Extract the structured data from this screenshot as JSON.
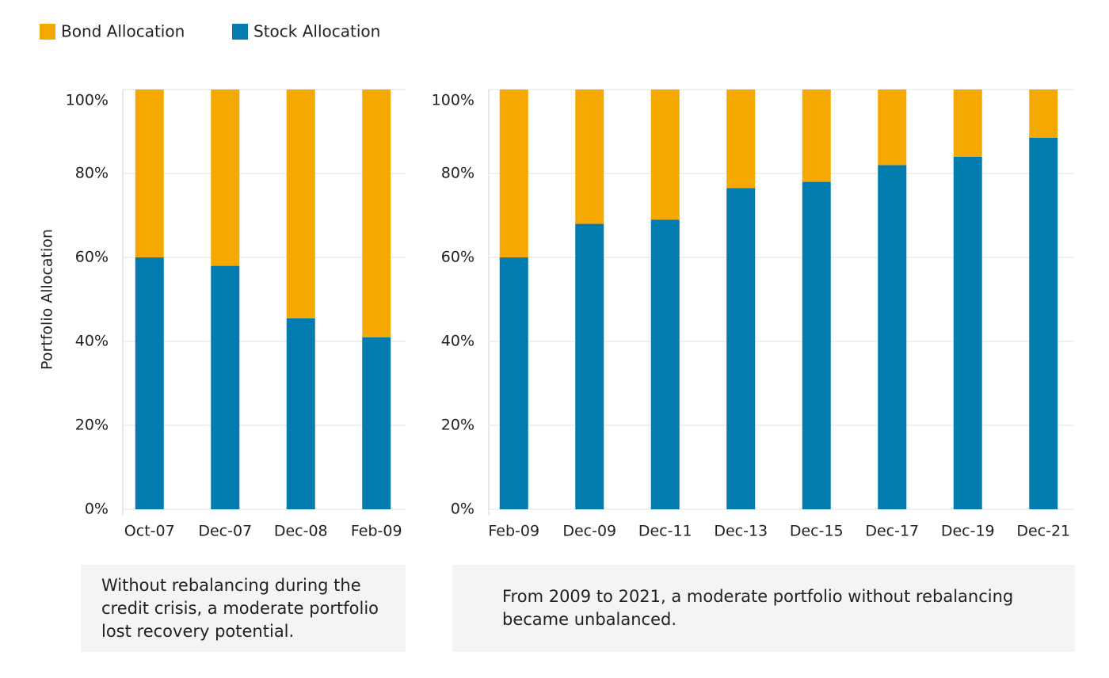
{
  "chart_data": [
    {
      "type": "stacked_bar",
      "y_label": "Portfolio Allocation",
      "categories": [
        "Oct-07",
        "Dec-07",
        "Dec-08",
        "Feb-09"
      ],
      "series": [
        {
          "name": "Stock Allocation",
          "color": "#027caf",
          "values": [
            60,
            58,
            45.5,
            41
          ]
        },
        {
          "name": "Bond Allocation",
          "color": "#f5a800",
          "values": [
            40,
            42,
            54.5,
            59
          ]
        }
      ],
      "ylim": [
        0,
        100
      ],
      "yticks": [
        {
          "value": 0,
          "label": "0%"
        },
        {
          "value": 20,
          "label": "20%"
        },
        {
          "value": 40,
          "label": "40%"
        },
        {
          "value": 60,
          "label": "60%"
        },
        {
          "value": 80,
          "label": "80%"
        },
        {
          "value": 100,
          "label": "100%"
        }
      ],
      "grid": true,
      "note": "Without rebalancing during the credit crisis, a moderate portfolio lost recovery potential."
    },
    {
      "type": "stacked_bar",
      "categories": [
        "Feb-09",
        "Dec-09",
        "Dec-11",
        "Dec-13",
        "Dec-15",
        "Dec-17",
        "Dec-19",
        "Dec-21"
      ],
      "series": [
        {
          "color": "#027caf",
          "values": [
            60,
            68,
            69,
            76.5,
            78,
            82,
            84,
            88.5
          ]
        },
        {
          "color": "#f5a800",
          "values": [
            40,
            32,
            31,
            23.5,
            22,
            18,
            16,
            11.5
          ]
        }
      ],
      "ylim": [
        0,
        100
      ],
      "yticks": [
        {
          "value": 0,
          "label": "0%"
        },
        {
          "value": 20,
          "label": "20%"
        },
        {
          "value": 40,
          "label": "40%"
        },
        {
          "value": 60,
          "label": "60%"
        },
        {
          "value": 80,
          "label": "80%"
        },
        {
          "value": 100,
          "label": "100%"
        }
      ],
      "grid": true,
      "note": "From 2009 to 2021, a moderate portfolio without rebalancing became unbalanced."
    }
  ]
}
